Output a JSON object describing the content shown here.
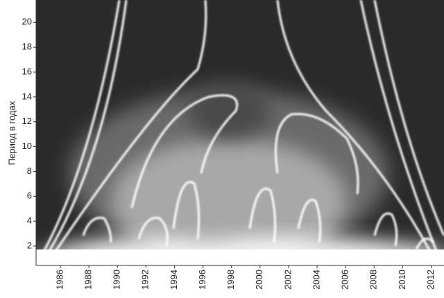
{
  "chart_data": {
    "type": "wavelet",
    "ylabel": "Период в годах",
    "xlim": [
      1984.3,
      2012.9
    ],
    "ylim": [
      0.44,
      21.8
    ],
    "xticks": [
      1986,
      1988,
      1990,
      1992,
      1994,
      1996,
      1998,
      2000,
      2002,
      2004,
      2006,
      2008,
      2010,
      2012
    ],
    "yticks": [
      2,
      4,
      6,
      8,
      10,
      12,
      14,
      16,
      18,
      20
    ]
  }
}
